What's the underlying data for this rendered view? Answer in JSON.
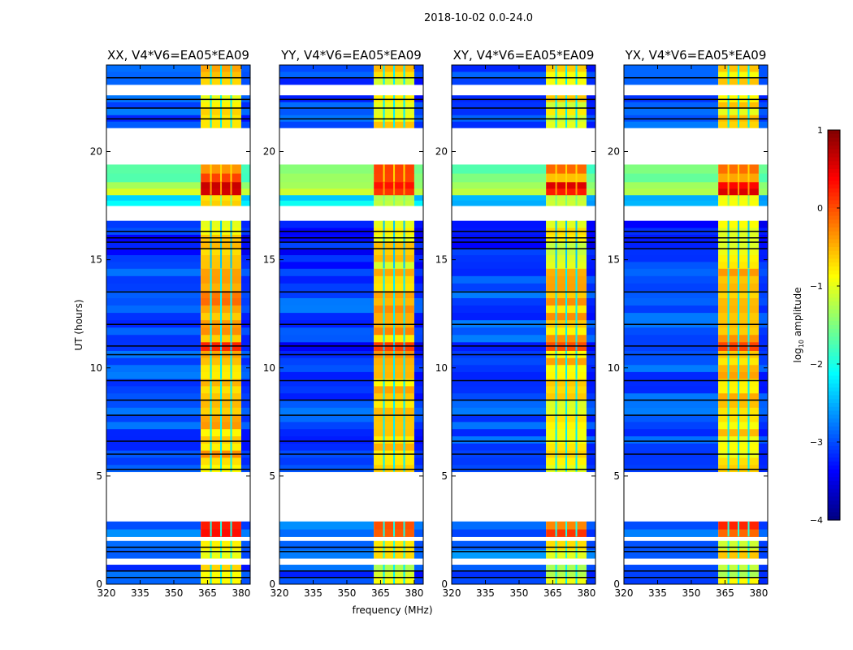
{
  "chart_data": {
    "type": "heatmap",
    "suptitle": "2018-10-02 0.0-24.0",
    "xlabel": "frequency (MHz)",
    "ylabel": "UT (hours)",
    "xlim": [
      320,
      384
    ],
    "ylim": [
      0,
      24
    ],
    "xticks": [
      "320",
      "335",
      "350",
      "365",
      "380"
    ],
    "xtick_values": [
      320,
      335,
      350,
      365,
      380
    ],
    "yticks": [
      "0",
      "5",
      "10",
      "15",
      "20"
    ],
    "ytick_values": [
      0,
      5,
      10,
      15,
      20
    ],
    "panels": [
      {
        "title": "XX, V4*V6=EA05*EA09",
        "band_offset": 0.1
      },
      {
        "title": "YY, V4*V6=EA05*EA09",
        "band_offset": 0.0
      },
      {
        "title": "XY, V4*V6=EA05*EA09",
        "band_offset": -0.1
      },
      {
        "title": "YX, V4*V6=EA05*EA09",
        "band_offset": -0.05
      }
    ],
    "band_mhz": [
      362,
      380
    ],
    "band_dividers_mhz": [
      366.5,
      371,
      375.5
    ],
    "segments_hours_bg_band": [
      [
        0.0,
        0.9,
        -3.0,
        -1.0
      ],
      [
        1.2,
        2.0,
        -2.8,
        -0.8
      ],
      [
        2.2,
        2.9,
        -2.8,
        0.0
      ],
      [
        5.2,
        9.5,
        -3.0,
        -0.7
      ],
      [
        9.5,
        10.8,
        -3.0,
        -0.6
      ],
      [
        10.8,
        11.2,
        -3.2,
        0.4
      ],
      [
        11.2,
        14.6,
        -3.0,
        -0.5
      ],
      [
        14.6,
        16.8,
        -3.2,
        -0.8
      ],
      [
        17.5,
        18.0,
        -2.3,
        -1.0
      ],
      [
        18.0,
        18.6,
        -1.2,
        0.4
      ],
      [
        18.6,
        19.4,
        -1.5,
        -0.2
      ],
      [
        21.1,
        22.6,
        -3.0,
        -0.8
      ],
      [
        23.1,
        24.0,
        -3.0,
        -0.8
      ]
    ],
    "dark_lines_hours": [
      0.3,
      0.6,
      1.5,
      1.7,
      5.3,
      6.0,
      6.6,
      7.8,
      8.5,
      9.4,
      10.6,
      11.0,
      12.0,
      13.5,
      15.5,
      15.8,
      16.0,
      16.3,
      21.5,
      22.0,
      22.4,
      23.4
    ],
    "colorbar": {
      "label": "log10 amplitude",
      "label_main": "log",
      "label_sub": "10",
      "label_rest": " amplitude",
      "range": [
        -4,
        1
      ],
      "ticks": [
        "1",
        "0",
        "−1",
        "−2",
        "−3",
        "−4"
      ],
      "tick_values": [
        1,
        0,
        -1,
        -2,
        -3,
        -4
      ]
    }
  }
}
